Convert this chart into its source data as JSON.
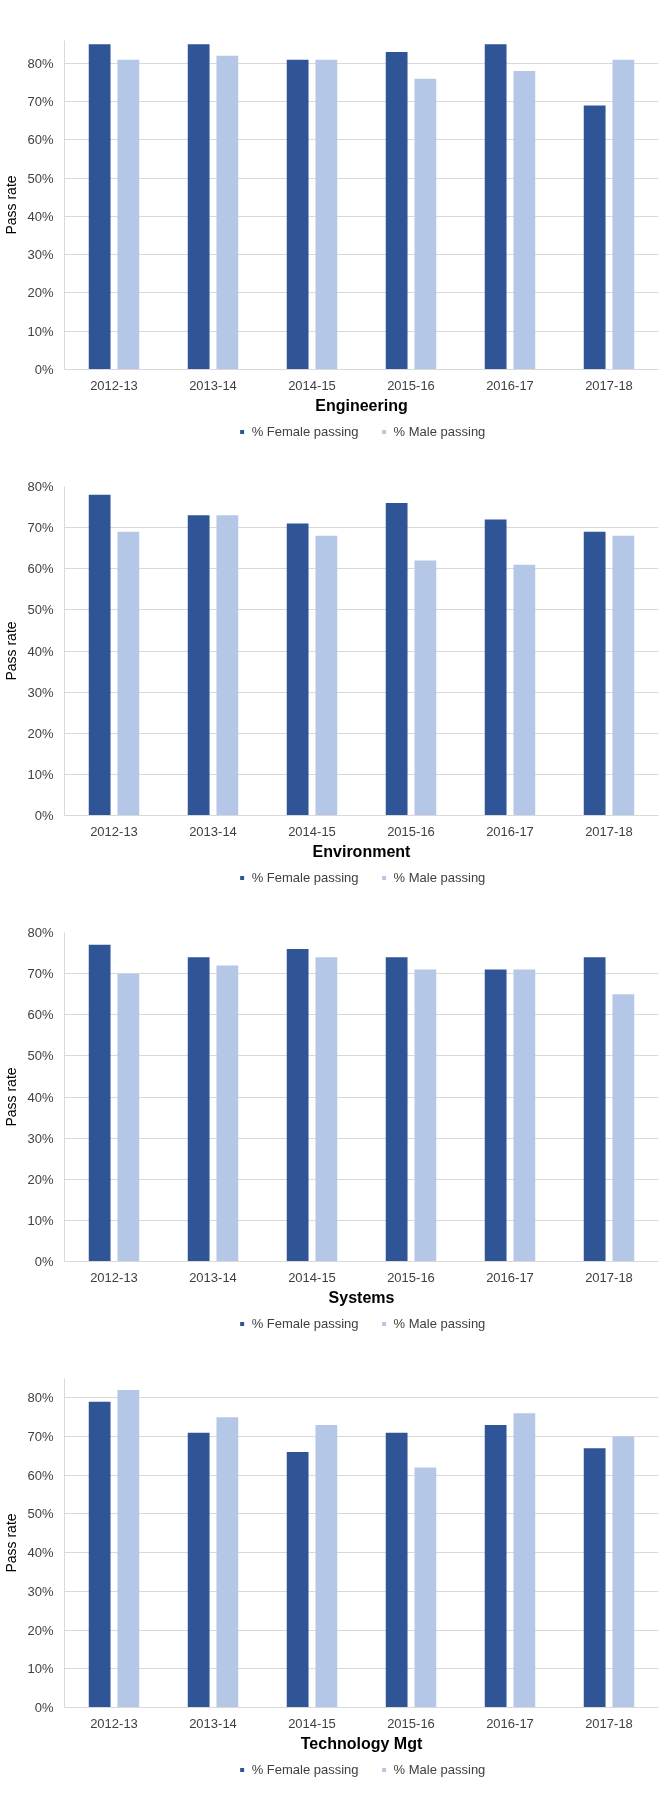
{
  "chart_data": [
    {
      "type": "bar",
      "xlabel": "Engineering",
      "ylabel": "Pass rate",
      "categories": [
        "2012-13",
        "2013-14",
        "2014-15",
        "2015-16",
        "2016-17",
        "2017-18"
      ],
      "series": [
        {
          "name": "% Female passing",
          "color": "#2f5597",
          "values": [
            85,
            85,
            81,
            83,
            85,
            69
          ]
        },
        {
          "name": "% Male passing",
          "color": "#b4c7e7",
          "values": [
            81,
            82,
            81,
            76,
            78,
            81
          ]
        }
      ],
      "ylim": [
        0,
        86
      ],
      "yticks": [
        {
          "value": 0,
          "label": "0%"
        },
        {
          "value": 10,
          "label": "10%"
        },
        {
          "value": 20,
          "label": "20%"
        },
        {
          "value": 30,
          "label": "30%"
        },
        {
          "value": 40,
          "label": "40%"
        },
        {
          "value": 50,
          "label": "50%"
        },
        {
          "value": 60,
          "label": "60%"
        },
        {
          "value": 70,
          "label": "70%"
        },
        {
          "value": 80,
          "label": "80%"
        }
      ],
      "grid": "y",
      "legend": "bottom"
    },
    {
      "type": "bar",
      "xlabel": "Environment",
      "ylabel": "Pass rate",
      "categories": [
        "2012-13",
        "2013-14",
        "2014-15",
        "2015-16",
        "2016-17",
        "2017-18"
      ],
      "series": [
        {
          "name": "% Female passing",
          "color": "#2f5597",
          "values": [
            78,
            73,
            71,
            76,
            72,
            69
          ]
        },
        {
          "name": "% Male passing",
          "color": "#b4c7e7",
          "values": [
            69,
            73,
            68,
            62,
            61,
            68
          ]
        }
      ],
      "ylim": [
        0,
        80
      ],
      "yticks": [
        {
          "value": 0,
          "label": "0%"
        },
        {
          "value": 10,
          "label": "10%"
        },
        {
          "value": 20,
          "label": "20%"
        },
        {
          "value": 30,
          "label": "30%"
        },
        {
          "value": 40,
          "label": "40%"
        },
        {
          "value": 50,
          "label": "50%"
        },
        {
          "value": 60,
          "label": "60%"
        },
        {
          "value": 70,
          "label": "70%"
        },
        {
          "value": 80,
          "label": "80%"
        }
      ],
      "grid": "y",
      "legend": "bottom"
    },
    {
      "type": "bar",
      "xlabel": "Systems",
      "ylabel": "Pass rate",
      "categories": [
        "2012-13",
        "2013-14",
        "2014-15",
        "2015-16",
        "2016-17",
        "2017-18"
      ],
      "series": [
        {
          "name": "% Female passing",
          "color": "#2f5597",
          "values": [
            77,
            74,
            76,
            74,
            71,
            74
          ]
        },
        {
          "name": "% Male passing",
          "color": "#b4c7e7",
          "values": [
            70,
            72,
            74,
            71,
            71,
            65
          ]
        }
      ],
      "ylim": [
        0,
        80
      ],
      "yticks": [
        {
          "value": 0,
          "label": "0%"
        },
        {
          "value": 10,
          "label": "10%"
        },
        {
          "value": 20,
          "label": "20%"
        },
        {
          "value": 30,
          "label": "30%"
        },
        {
          "value": 40,
          "label": "40%"
        },
        {
          "value": 50,
          "label": "50%"
        },
        {
          "value": 60,
          "label": "60%"
        },
        {
          "value": 70,
          "label": "70%"
        },
        {
          "value": 80,
          "label": "80%"
        }
      ],
      "grid": "y",
      "legend": "bottom"
    },
    {
      "type": "bar",
      "xlabel": "Technology Mgt",
      "ylabel": "Pass rate",
      "categories": [
        "2012-13",
        "2013-14",
        "2014-15",
        "2015-16",
        "2016-17",
        "2017-18"
      ],
      "series": [
        {
          "name": "% Female passing",
          "color": "#2f5597",
          "values": [
            79,
            71,
            66,
            71,
            73,
            67
          ]
        },
        {
          "name": "% Male passing",
          "color": "#b4c7e7",
          "values": [
            82,
            75,
            73,
            62,
            76,
            70
          ]
        }
      ],
      "ylim": [
        0,
        85
      ],
      "yticks": [
        {
          "value": 0,
          "label": "0%"
        },
        {
          "value": 10,
          "label": "10%"
        },
        {
          "value": 20,
          "label": "20%"
        },
        {
          "value": 30,
          "label": "30%"
        },
        {
          "value": 40,
          "label": "40%"
        },
        {
          "value": 50,
          "label": "50%"
        },
        {
          "value": 60,
          "label": "60%"
        },
        {
          "value": 70,
          "label": "70%"
        },
        {
          "value": 80,
          "label": "80%"
        }
      ],
      "grid": "y",
      "legend": "bottom"
    }
  ]
}
